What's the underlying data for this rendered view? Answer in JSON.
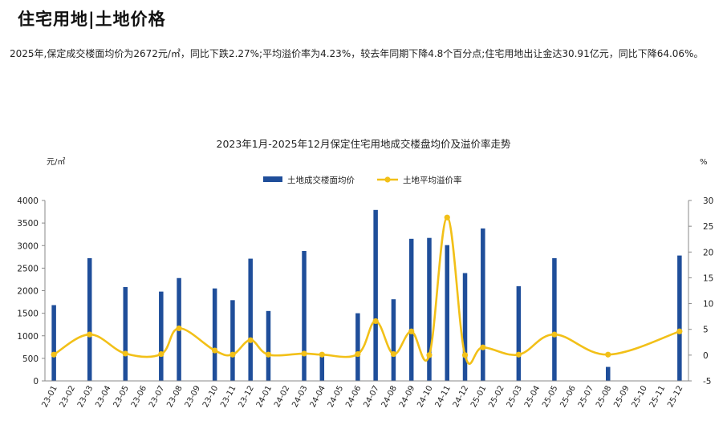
{
  "page": {
    "title": "住宅用地|土地价格",
    "summary": "2025年,保定成交楼面均价为2672元/㎡，同比下跌2.27%;平均溢价率为4.23%，较去年同期下降4.8个百分点;住宅用地出让金达30.91亿元，同比下降64.06%。"
  },
  "colors": {
    "bar": "#1F4E9A",
    "line": "#F2C018",
    "axis": "#888888",
    "text": "#222222"
  },
  "chart_data": {
    "type": "bar",
    "title": "2023年1月-2025年12月保定住宅用地成交楼盘均价及溢价率走势",
    "ylabel_left": "元/㎡",
    "ylabel_right": "%",
    "legend_position": "top-center",
    "grid": false,
    "categories": [
      "23-01",
      "23-02",
      "23-03",
      "23-04",
      "23-05",
      "23-06",
      "23-07",
      "23-08",
      "23-09",
      "23-10",
      "23-11",
      "23-12",
      "24-01",
      "24-02",
      "24-03",
      "24-04",
      "24-05",
      "24-06",
      "24-07",
      "24-08",
      "24-09",
      "24-10",
      "24-11",
      "24-12",
      "25-01",
      "25-02",
      "25-03",
      "25-04",
      "25-05",
      "25-06",
      "25-07",
      "25-08",
      "25-09",
      "25-10",
      "25-11",
      "25-12"
    ],
    "ylim_left": [
      0,
      4000
    ],
    "yticks_left": [
      0,
      500,
      1000,
      1500,
      2000,
      2500,
      3000,
      3500,
      4000
    ],
    "ylim_right": [
      -5,
      30
    ],
    "yticks_right": [
      -5,
      0,
      5,
      10,
      15,
      20,
      25,
      30
    ],
    "series": [
      {
        "name": "土地成交楼面均价",
        "kind": "bar",
        "axis": "left",
        "values": [
          1680,
          null,
          2720,
          null,
          2080,
          null,
          1980,
          2280,
          null,
          2050,
          1790,
          2710,
          1550,
          null,
          2880,
          600,
          null,
          1500,
          3790,
          1810,
          3150,
          3170,
          3010,
          2390,
          3380,
          null,
          2100,
          null,
          2720,
          null,
          null,
          310,
          null,
          null,
          null,
          2780
        ]
      },
      {
        "name": "土地平均溢价率",
        "kind": "line",
        "axis": "right",
        "values": [
          0.1,
          null,
          4.0,
          null,
          0.3,
          null,
          0.2,
          5.2,
          null,
          0.9,
          0.1,
          2.9,
          0.1,
          null,
          0.3,
          0.1,
          null,
          0.2,
          6.6,
          0.2,
          4.6,
          0.0,
          26.7,
          0.0,
          1.5,
          null,
          0.1,
          null,
          4.0,
          null,
          null,
          0.1,
          null,
          null,
          null,
          4.6
        ]
      }
    ]
  }
}
